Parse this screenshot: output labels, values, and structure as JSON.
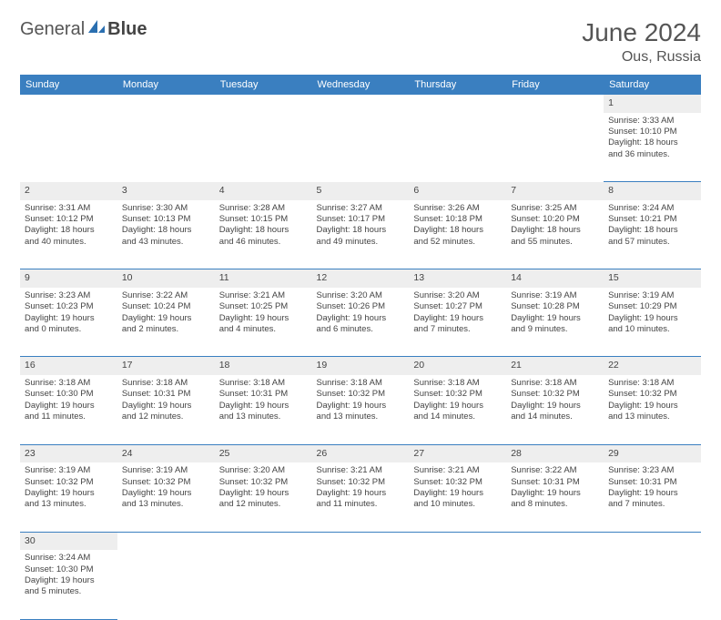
{
  "logo": {
    "part1": "General",
    "part2": "Blue"
  },
  "header": {
    "title": "June 2024",
    "location": "Ous, Russia"
  },
  "colors": {
    "header_bg": "#3a7fc0",
    "header_text": "#ffffff",
    "daynum_bg": "#eeeeee",
    "border": "#3a7fc0",
    "logo_icon": "#2a6fb0"
  },
  "weekdays": [
    "Sunday",
    "Monday",
    "Tuesday",
    "Wednesday",
    "Thursday",
    "Friday",
    "Saturday"
  ],
  "weeks": [
    [
      null,
      null,
      null,
      null,
      null,
      null,
      {
        "n": "1",
        "sr": "Sunrise: 3:33 AM",
        "ss": "Sunset: 10:10 PM",
        "dl1": "Daylight: 18 hours",
        "dl2": "and 36 minutes."
      }
    ],
    [
      {
        "n": "2",
        "sr": "Sunrise: 3:31 AM",
        "ss": "Sunset: 10:12 PM",
        "dl1": "Daylight: 18 hours",
        "dl2": "and 40 minutes."
      },
      {
        "n": "3",
        "sr": "Sunrise: 3:30 AM",
        "ss": "Sunset: 10:13 PM",
        "dl1": "Daylight: 18 hours",
        "dl2": "and 43 minutes."
      },
      {
        "n": "4",
        "sr": "Sunrise: 3:28 AM",
        "ss": "Sunset: 10:15 PM",
        "dl1": "Daylight: 18 hours",
        "dl2": "and 46 minutes."
      },
      {
        "n": "5",
        "sr": "Sunrise: 3:27 AM",
        "ss": "Sunset: 10:17 PM",
        "dl1": "Daylight: 18 hours",
        "dl2": "and 49 minutes."
      },
      {
        "n": "6",
        "sr": "Sunrise: 3:26 AM",
        "ss": "Sunset: 10:18 PM",
        "dl1": "Daylight: 18 hours",
        "dl2": "and 52 minutes."
      },
      {
        "n": "7",
        "sr": "Sunrise: 3:25 AM",
        "ss": "Sunset: 10:20 PM",
        "dl1": "Daylight: 18 hours",
        "dl2": "and 55 minutes."
      },
      {
        "n": "8",
        "sr": "Sunrise: 3:24 AM",
        "ss": "Sunset: 10:21 PM",
        "dl1": "Daylight: 18 hours",
        "dl2": "and 57 minutes."
      }
    ],
    [
      {
        "n": "9",
        "sr": "Sunrise: 3:23 AM",
        "ss": "Sunset: 10:23 PM",
        "dl1": "Daylight: 19 hours",
        "dl2": "and 0 minutes."
      },
      {
        "n": "10",
        "sr": "Sunrise: 3:22 AM",
        "ss": "Sunset: 10:24 PM",
        "dl1": "Daylight: 19 hours",
        "dl2": "and 2 minutes."
      },
      {
        "n": "11",
        "sr": "Sunrise: 3:21 AM",
        "ss": "Sunset: 10:25 PM",
        "dl1": "Daylight: 19 hours",
        "dl2": "and 4 minutes."
      },
      {
        "n": "12",
        "sr": "Sunrise: 3:20 AM",
        "ss": "Sunset: 10:26 PM",
        "dl1": "Daylight: 19 hours",
        "dl2": "and 6 minutes."
      },
      {
        "n": "13",
        "sr": "Sunrise: 3:20 AM",
        "ss": "Sunset: 10:27 PM",
        "dl1": "Daylight: 19 hours",
        "dl2": "and 7 minutes."
      },
      {
        "n": "14",
        "sr": "Sunrise: 3:19 AM",
        "ss": "Sunset: 10:28 PM",
        "dl1": "Daylight: 19 hours",
        "dl2": "and 9 minutes."
      },
      {
        "n": "15",
        "sr": "Sunrise: 3:19 AM",
        "ss": "Sunset: 10:29 PM",
        "dl1": "Daylight: 19 hours",
        "dl2": "and 10 minutes."
      }
    ],
    [
      {
        "n": "16",
        "sr": "Sunrise: 3:18 AM",
        "ss": "Sunset: 10:30 PM",
        "dl1": "Daylight: 19 hours",
        "dl2": "and 11 minutes."
      },
      {
        "n": "17",
        "sr": "Sunrise: 3:18 AM",
        "ss": "Sunset: 10:31 PM",
        "dl1": "Daylight: 19 hours",
        "dl2": "and 12 minutes."
      },
      {
        "n": "18",
        "sr": "Sunrise: 3:18 AM",
        "ss": "Sunset: 10:31 PM",
        "dl1": "Daylight: 19 hours",
        "dl2": "and 13 minutes."
      },
      {
        "n": "19",
        "sr": "Sunrise: 3:18 AM",
        "ss": "Sunset: 10:32 PM",
        "dl1": "Daylight: 19 hours",
        "dl2": "and 13 minutes."
      },
      {
        "n": "20",
        "sr": "Sunrise: 3:18 AM",
        "ss": "Sunset: 10:32 PM",
        "dl1": "Daylight: 19 hours",
        "dl2": "and 14 minutes."
      },
      {
        "n": "21",
        "sr": "Sunrise: 3:18 AM",
        "ss": "Sunset: 10:32 PM",
        "dl1": "Daylight: 19 hours",
        "dl2": "and 14 minutes."
      },
      {
        "n": "22",
        "sr": "Sunrise: 3:18 AM",
        "ss": "Sunset: 10:32 PM",
        "dl1": "Daylight: 19 hours",
        "dl2": "and 13 minutes."
      }
    ],
    [
      {
        "n": "23",
        "sr": "Sunrise: 3:19 AM",
        "ss": "Sunset: 10:32 PM",
        "dl1": "Daylight: 19 hours",
        "dl2": "and 13 minutes."
      },
      {
        "n": "24",
        "sr": "Sunrise: 3:19 AM",
        "ss": "Sunset: 10:32 PM",
        "dl1": "Daylight: 19 hours",
        "dl2": "and 13 minutes."
      },
      {
        "n": "25",
        "sr": "Sunrise: 3:20 AM",
        "ss": "Sunset: 10:32 PM",
        "dl1": "Daylight: 19 hours",
        "dl2": "and 12 minutes."
      },
      {
        "n": "26",
        "sr": "Sunrise: 3:21 AM",
        "ss": "Sunset: 10:32 PM",
        "dl1": "Daylight: 19 hours",
        "dl2": "and 11 minutes."
      },
      {
        "n": "27",
        "sr": "Sunrise: 3:21 AM",
        "ss": "Sunset: 10:32 PM",
        "dl1": "Daylight: 19 hours",
        "dl2": "and 10 minutes."
      },
      {
        "n": "28",
        "sr": "Sunrise: 3:22 AM",
        "ss": "Sunset: 10:31 PM",
        "dl1": "Daylight: 19 hours",
        "dl2": "and 8 minutes."
      },
      {
        "n": "29",
        "sr": "Sunrise: 3:23 AM",
        "ss": "Sunset: 10:31 PM",
        "dl1": "Daylight: 19 hours",
        "dl2": "and 7 minutes."
      }
    ],
    [
      {
        "n": "30",
        "sr": "Sunrise: 3:24 AM",
        "ss": "Sunset: 10:30 PM",
        "dl1": "Daylight: 19 hours",
        "dl2": "and 5 minutes."
      },
      null,
      null,
      null,
      null,
      null,
      null
    ]
  ]
}
